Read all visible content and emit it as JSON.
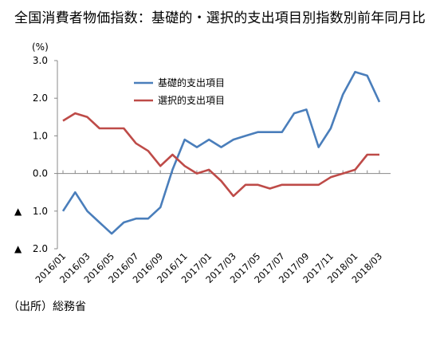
{
  "title": "全国消費者物価指数：基礎的・選択的支出項目別指数別前年同月比",
  "unit": "(%)",
  "source": "（出所）総務省",
  "chart_data": {
    "type": "line",
    "ylim": [
      -2.0,
      3.0
    ],
    "y_ticks": [
      3.0,
      2.0,
      1.0,
      0.0,
      -1.0,
      -2.0
    ],
    "y_tick_labels": [
      "3.0",
      "2.0",
      "1.0",
      "0.0",
      "▲ 1.0",
      "▲ 2.0"
    ],
    "grid": false,
    "legend_position": "upper-middle",
    "x": [
      "2016/01",
      "2016/02",
      "2016/03",
      "2016/04",
      "2016/05",
      "2016/06",
      "2016/07",
      "2016/08",
      "2016/09",
      "2016/10",
      "2016/11",
      "2016/12",
      "2017/01",
      "2017/02",
      "2017/03",
      "2017/04",
      "2017/05",
      "2017/06",
      "2017/07",
      "2017/08",
      "2017/09",
      "2017/10",
      "2017/11",
      "2017/12",
      "2018/01",
      "2018/02",
      "2018/03"
    ],
    "x_tick_labels": [
      "2016/01",
      "2016/03",
      "2016/05",
      "2016/07",
      "2016/09",
      "2016/11",
      "2017/01",
      "2017/03",
      "2017/05",
      "2017/07",
      "2017/09",
      "2017/11",
      "2018/01",
      "2018/03"
    ],
    "series": [
      {
        "name": "基礎的支出項目",
        "color": "#4a7ebb",
        "values": [
          -1.0,
          -0.5,
          -1.0,
          -1.3,
          -1.6,
          -1.3,
          -1.2,
          -1.2,
          -0.9,
          0.1,
          0.9,
          0.7,
          0.9,
          0.7,
          0.9,
          1.0,
          1.1,
          1.1,
          1.1,
          1.6,
          1.7,
          0.7,
          1.2,
          2.1,
          2.7,
          2.6,
          1.9
        ]
      },
      {
        "name": "選択的支出項目",
        "color": "#be4b48",
        "values": [
          1.4,
          1.6,
          1.5,
          1.2,
          1.2,
          1.2,
          0.8,
          0.6,
          0.2,
          0.5,
          0.2,
          0.0,
          0.1,
          -0.2,
          -0.6,
          -0.3,
          -0.3,
          -0.4,
          -0.3,
          -0.3,
          -0.3,
          -0.3,
          -0.1,
          0.0,
          0.1,
          0.5,
          0.5
        ]
      }
    ]
  }
}
